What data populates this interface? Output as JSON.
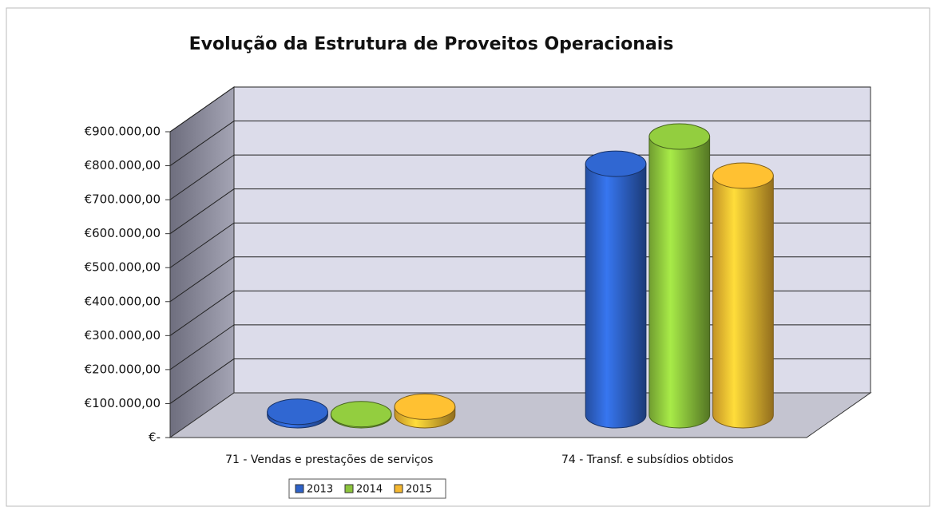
{
  "chart_data": {
    "type": "bar3d",
    "title": "Evolução da Estrutura de Proveitos Operacionais",
    "categories": [
      "71 - Vendas e prestações de serviços",
      "74 - Transf. e subsídios obtidos"
    ],
    "series": [
      {
        "name": "2013",
        "color": "#2e62c8",
        "values": [
          10000,
          740000
        ]
      },
      {
        "name": "2014",
        "color": "#8cc43c",
        "values": [
          3000,
          820000
        ]
      },
      {
        "name": "2015",
        "color": "#f5b830",
        "values": [
          25000,
          705000
        ]
      }
    ],
    "ylim": [
      0,
      900000
    ],
    "yticks": [
      {
        "value": 0,
        "label": "€-"
      },
      {
        "value": 100000,
        "label": "€100.000,00"
      },
      {
        "value": 200000,
        "label": "€200.000,00"
      },
      {
        "value": 300000,
        "label": "€300.000,00"
      },
      {
        "value": 400000,
        "label": "€400.000,00"
      },
      {
        "value": 500000,
        "label": "€500.000,00"
      },
      {
        "value": 600000,
        "label": "€600.000,00"
      },
      {
        "value": 700000,
        "label": "€700.000,00"
      },
      {
        "value": 800000,
        "label": "€800.000,00"
      },
      {
        "value": 900000,
        "label": "€900.000,00"
      }
    ],
    "grid": true,
    "legend": "bottom"
  }
}
